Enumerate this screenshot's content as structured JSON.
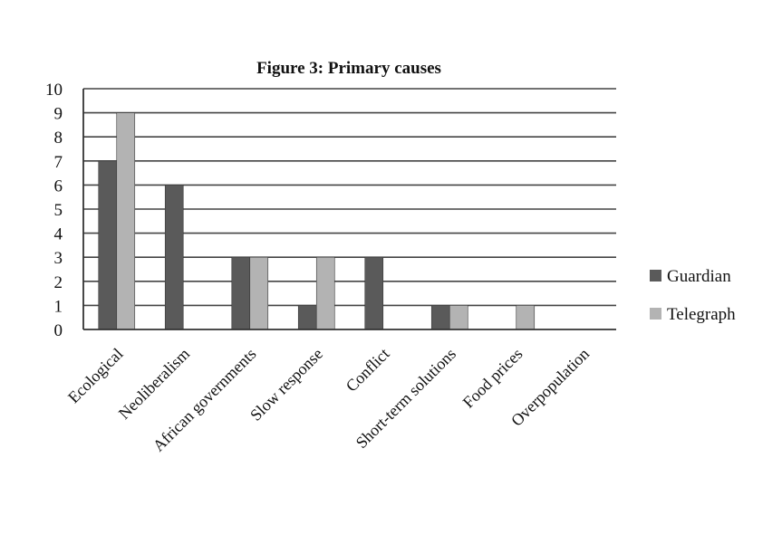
{
  "chart_data": {
    "type": "bar",
    "title": "Figure 3: Primary causes",
    "xlabel": "",
    "ylabel": "",
    "categories": [
      "Ecological",
      "Neoliberalism",
      "African governments",
      "Slow response",
      "Conflict",
      "Short-term solutions",
      "Food prices",
      "Overpopulation"
    ],
    "series": [
      {
        "name": "Guardian",
        "color": "#5a5a5a",
        "values": [
          7,
          6,
          3,
          1,
          3,
          1,
          0,
          0
        ]
      },
      {
        "name": "Telegraph",
        "color": "#b3b3b3",
        "values": [
          9,
          0,
          3,
          3,
          0,
          1,
          1,
          0
        ]
      }
    ],
    "ylim": [
      0,
      10
    ],
    "yticks": [
      "0",
      "1",
      "2",
      "3",
      "4",
      "5",
      "6",
      "7",
      "8",
      "9",
      "10"
    ],
    "grid": true,
    "legend_position": "right"
  }
}
